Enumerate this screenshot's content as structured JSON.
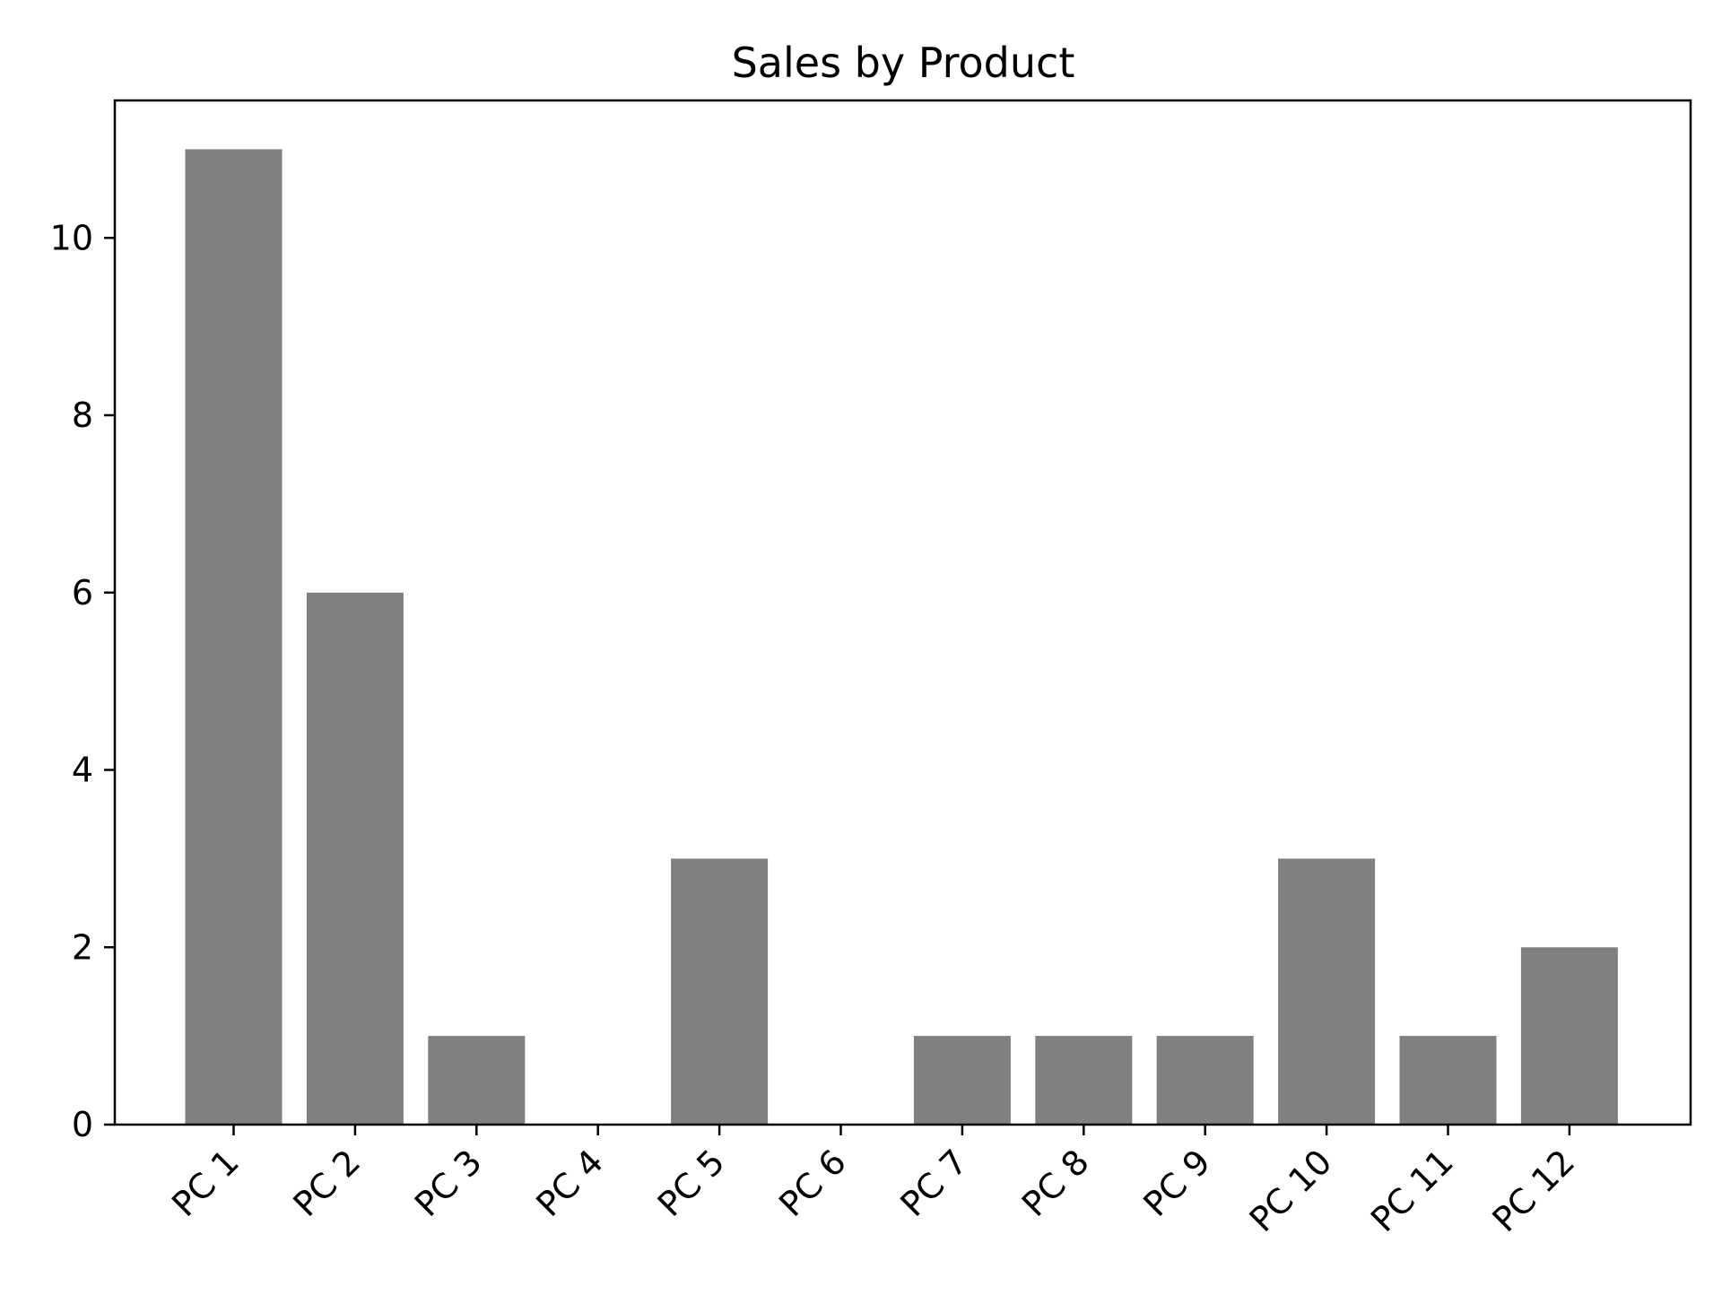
{
  "chart_data": {
    "type": "bar",
    "title": "Sales by Product",
    "xlabel": "",
    "ylabel": "",
    "categories": [
      "PC 1",
      "PC 2",
      "PC 3",
      "PC 4",
      "PC 5",
      "PC 6",
      "PC 7",
      "PC 8",
      "PC 9",
      "PC 10",
      "PC 11",
      "PC 12"
    ],
    "values": [
      11,
      6,
      1,
      0,
      3,
      0,
      1,
      1,
      1,
      3,
      1,
      2
    ],
    "ylim": [
      0,
      11.55
    ],
    "yticks": [
      0,
      2,
      4,
      6,
      8,
      10
    ],
    "ytick_labels": [
      "0",
      "2",
      "4",
      "6",
      "8",
      "10"
    ],
    "bar_color": "#808080",
    "grid": false,
    "legend": "none",
    "xtick_rotation_deg": 45
  }
}
